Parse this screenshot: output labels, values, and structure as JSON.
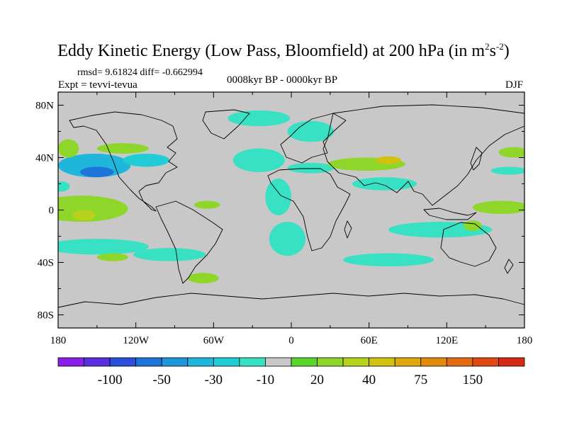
{
  "chart_data": {
    "type": "heatmap",
    "title_prefix": "Eddy Kinetic Energy (Low Pass, Bloomfield) at 200 hPa (in m",
    "title_unit_sup1": "2",
    "title_unit_s": "s",
    "title_unit_sup2": "-2",
    "title_suffix": ")",
    "stats": "rmsd= 9.61824 diff= -0.662994",
    "experiment": "Expt = tevvi-tevua",
    "period": "0008kyr BP - 0000kyr BP",
    "season": "DJF",
    "xlim": [
      -180,
      180
    ],
    "ylim": [
      -90,
      90
    ],
    "x_ticks": [
      {
        "value": -180,
        "label": "180"
      },
      {
        "value": -120,
        "label": "120W"
      },
      {
        "value": -60,
        "label": "60W"
      },
      {
        "value": 0,
        "label": "0"
      },
      {
        "value": 60,
        "label": "60E"
      },
      {
        "value": 120,
        "label": "120E"
      },
      {
        "value": 180,
        "label": "180"
      }
    ],
    "y_ticks": [
      {
        "value": 80,
        "label": "80N"
      },
      {
        "value": 40,
        "label": "40N"
      },
      {
        "value": 0,
        "label": "0"
      },
      {
        "value": -40,
        "label": "40S"
      },
      {
        "value": -80,
        "label": "80S"
      }
    ],
    "colorbar": {
      "colors": [
        "#8a1fe8",
        "#5a2fe0",
        "#2a4fd8",
        "#1e74d8",
        "#1e96dc",
        "#20b6dc",
        "#22ccd6",
        "#38e0c4",
        "#c8c8c8",
        "#5ad62a",
        "#8ed62a",
        "#b6d21c",
        "#d2c210",
        "#e0a80e",
        "#e28a0e",
        "#e26a10",
        "#e04a12",
        "#d42a14"
      ],
      "labels": [
        {
          "after_index": 1,
          "text": "-100"
        },
        {
          "after_index": 3,
          "text": "-50"
        },
        {
          "after_index": 5,
          "text": "-30"
        },
        {
          "after_index": 7,
          "text": "-10"
        },
        {
          "after_index": 9,
          "text": "20"
        },
        {
          "after_index": 11,
          "text": "40"
        },
        {
          "after_index": 13,
          "text": "75"
        },
        {
          "after_index": 15,
          "text": "150"
        }
      ]
    },
    "anomaly_regions": [
      {
        "lon": -152,
        "lat": 34,
        "rlon": 28,
        "rlat": 9,
        "value": -25
      },
      {
        "lon": -150,
        "lat": 29,
        "rlon": 13,
        "rlat": 4,
        "value": -40
      },
      {
        "lon": -112,
        "lat": 38,
        "rlon": 18,
        "rlat": 5,
        "value": -15
      },
      {
        "lon": -162,
        "lat": 1,
        "rlon": 36,
        "rlat": 10,
        "value": 20
      },
      {
        "lon": -160,
        "lat": -4,
        "rlon": 9,
        "rlat": 4,
        "value": 35
      },
      {
        "lon": -150,
        "lat": -28,
        "rlon": 40,
        "rlat": 6,
        "value": -12
      },
      {
        "lon": -138,
        "lat": -36,
        "rlon": 12,
        "rlat": 3,
        "value": 20
      },
      {
        "lon": -94,
        "lat": -34,
        "rlon": 28,
        "rlat": 5,
        "value": -12
      },
      {
        "lon": -130,
        "lat": 47,
        "rlon": 20,
        "rlat": 4,
        "value": 20
      },
      {
        "lon": -172,
        "lat": 47,
        "rlon": 8,
        "rlat": 7,
        "value": 20
      },
      {
        "lon": -178,
        "lat": 18,
        "rlon": 7,
        "rlat": 4,
        "value": -12
      },
      {
        "lon": -65,
        "lat": 4,
        "rlon": 10,
        "rlat": 3,
        "value": 20
      },
      {
        "lon": -68,
        "lat": -52,
        "rlon": 12,
        "rlat": 4,
        "value": 20
      },
      {
        "lon": -25,
        "lat": 70,
        "rlon": 24,
        "rlat": 6,
        "value": -12
      },
      {
        "lon": 15,
        "lat": 60,
        "rlon": 18,
        "rlat": 8,
        "value": -12
      },
      {
        "lon": -25,
        "lat": 38,
        "rlon": 20,
        "rlat": 9,
        "value": -12
      },
      {
        "lon": -10,
        "lat": 10,
        "rlon": 10,
        "rlat": 14,
        "value": -12
      },
      {
        "lon": -3,
        "lat": -22,
        "rlon": 14,
        "rlat": 13,
        "value": -12
      },
      {
        "lon": 15,
        "lat": 32,
        "rlon": 18,
        "rlat": 4,
        "value": -12
      },
      {
        "lon": 58,
        "lat": 35,
        "rlon": 30,
        "rlat": 5,
        "value": 20
      },
      {
        "lon": 75,
        "lat": 38,
        "rlon": 10,
        "rlat": 3,
        "value": 45
      },
      {
        "lon": 72,
        "lat": 20,
        "rlon": 25,
        "rlat": 5,
        "value": -12
      },
      {
        "lon": 75,
        "lat": -38,
        "rlon": 35,
        "rlat": 5,
        "value": -12
      },
      {
        "lon": 115,
        "lat": -15,
        "rlon": 40,
        "rlat": 6,
        "value": -12
      },
      {
        "lon": 162,
        "lat": 2,
        "rlon": 22,
        "rlat": 5,
        "value": 20
      },
      {
        "lon": 168,
        "lat": 30,
        "rlon": 14,
        "rlat": 3,
        "value": -12
      },
      {
        "lon": 172,
        "lat": 44,
        "rlon": 12,
        "rlat": 4,
        "value": 20
      },
      {
        "lon": 140,
        "lat": -12,
        "rlon": 7,
        "rlat": 4,
        "value": 20
      }
    ]
  }
}
